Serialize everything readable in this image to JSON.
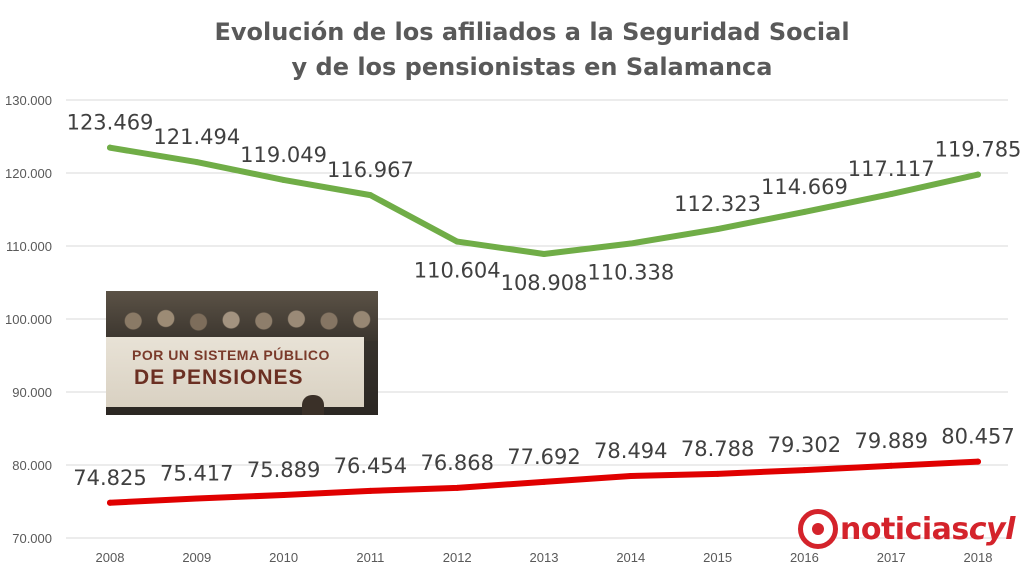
{
  "chart_data": {
    "type": "line",
    "title": "Evolución de los afiliados a la Seguridad Social y de los pensionistas en Salamanca",
    "title_lines": [
      "Evolución de los afiliados a la Seguridad Social",
      "y de los pensionistas en Salamanca"
    ],
    "categories": [
      "2008",
      "2009",
      "2010",
      "2011",
      "2012",
      "2013",
      "2014",
      "2015",
      "2016",
      "2017",
      "2018"
    ],
    "ylim": [
      70000,
      130000
    ],
    "yticks": [
      70000,
      80000,
      90000,
      100000,
      110000,
      120000,
      130000
    ],
    "ytick_labels": [
      "70.000",
      "80.000",
      "90.000",
      "100.000",
      "110.000",
      "120.000",
      "130.000"
    ],
    "grid": true,
    "legend": "none",
    "series": [
      {
        "name": "Afiliados a la Seguridad Social",
        "color": "#70ad47",
        "values": [
          123469,
          121494,
          119049,
          116967,
          110604,
          108908,
          110338,
          112323,
          114669,
          117117,
          119785
        ],
        "labels": [
          "123.469",
          "121.494",
          "119.049",
          "116.967",
          "110.604",
          "108.908",
          "110.338",
          "112.323",
          "114.669",
          "117.117",
          "119.785"
        ],
        "label_positions": [
          "above",
          "above",
          "above",
          "above",
          "below",
          "below",
          "below",
          "above",
          "above",
          "above",
          "above"
        ]
      },
      {
        "name": "Pensionistas",
        "color": "#e00000",
        "values": [
          74825,
          75417,
          75889,
          76454,
          76868,
          77692,
          78494,
          78788,
          79302,
          79889,
          80457
        ],
        "labels": [
          "74.825",
          "75.417",
          "75.889",
          "76.454",
          "76.868",
          "77.692",
          "78.494",
          "78.788",
          "79.302",
          "79.889",
          "80.457"
        ],
        "label_positions": [
          "above",
          "above",
          "above",
          "above",
          "above",
          "above",
          "above",
          "above",
          "above",
          "above",
          "above"
        ]
      }
    ]
  },
  "photo": {
    "banner_line1": "POR UN SISTEMA PÚBLICO",
    "banner_line2": "DE PENSIONES"
  },
  "logo": {
    "text_main": "noticias",
    "text_suffix": "cyl",
    "color": "#d4232b"
  }
}
